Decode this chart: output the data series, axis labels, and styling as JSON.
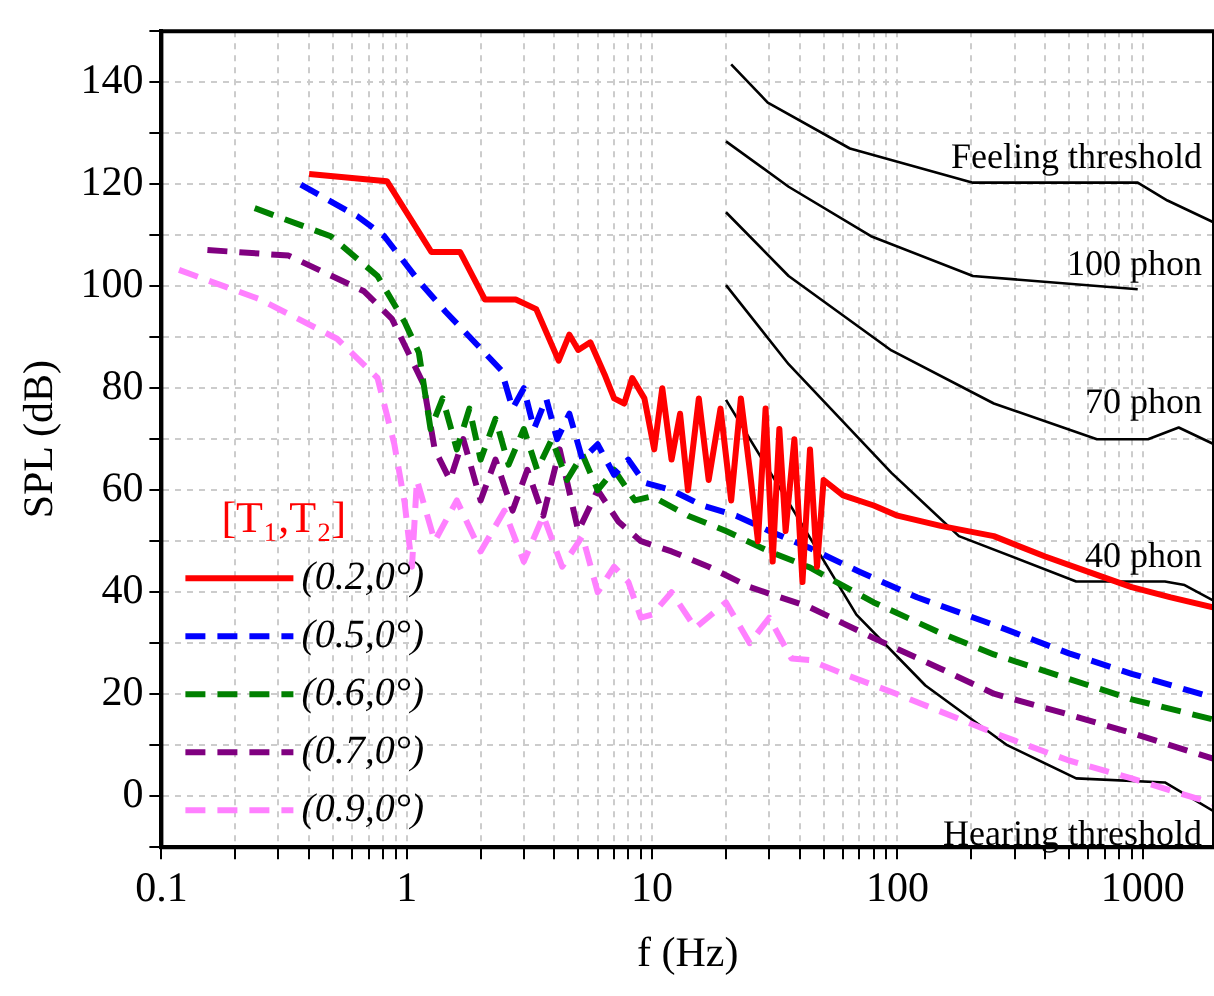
{
  "chart_data": {
    "type": "line",
    "xlabel": "f (Hz)",
    "ylabel": "SPL (dB)",
    "legend_title": "[T₁,T₂]",
    "legend": "bottom left",
    "log": "x",
    "grid": true,
    "marker": "none",
    "xlim": [
      0.1,
      1950
    ],
    "ylim": [
      -10,
      150
    ],
    "xticks": [
      0.1,
      {
        "value": 0.2,
        "label": null
      },
      {
        "value": 0.3,
        "label": null
      },
      {
        "value": 0.4,
        "label": null
      },
      {
        "value": 0.5,
        "label": null
      },
      {
        "value": 0.6,
        "label": null
      },
      {
        "value": 0.7,
        "label": null
      },
      {
        "value": 0.8,
        "label": null
      },
      {
        "value": 0.9,
        "label": null
      },
      1,
      {
        "value": 2,
        "label": null
      },
      {
        "value": 3,
        "label": null
      },
      {
        "value": 4,
        "label": null
      },
      {
        "value": 5,
        "label": null
      },
      {
        "value": 6,
        "label": null
      },
      {
        "value": 7,
        "label": null
      },
      {
        "value": 8,
        "label": null
      },
      {
        "value": 9,
        "label": null
      },
      10,
      {
        "value": 20,
        "label": null
      },
      {
        "value": 30,
        "label": null
      },
      {
        "value": 40,
        "label": null
      },
      {
        "value": 50,
        "label": null
      },
      {
        "value": 60,
        "label": null
      },
      {
        "value": 70,
        "label": null
      },
      {
        "value": 80,
        "label": null
      },
      {
        "value": 90,
        "label": null
      },
      100,
      {
        "value": 200,
        "label": null
      },
      {
        "value": 300,
        "label": null
      },
      {
        "value": 400,
        "label": null
      },
      {
        "value": 500,
        "label": null
      },
      {
        "value": 600,
        "label": null
      },
      {
        "value": 700,
        "label": null
      },
      {
        "value": 800,
        "label": null
      },
      {
        "value": 900,
        "label": null
      },
      1000
    ],
    "yticks": [
      {
        "value": -10,
        "label": null
      },
      0,
      {
        "value": 10,
        "label": null
      },
      20,
      {
        "value": 30,
        "label": null
      },
      40,
      {
        "value": 50,
        "label": null
      },
      60,
      {
        "value": 70,
        "label": null
      },
      80,
      {
        "value": 90,
        "label": null
      },
      100,
      {
        "value": 110,
        "label": null
      },
      120,
      {
        "value": 130,
        "label": null
      },
      140,
      {
        "value": 150,
        "label": null
      }
    ],
    "series": [
      {
        "name": "(0.2,0°)",
        "color": "#ff0000",
        "line_style": "solid",
        "x": [
          0.4,
          0.83,
          1.26,
          1.65,
          2.08,
          2.78,
          3.37,
          4.16,
          4.6,
          5.0,
          5.6,
          6.4,
          7.0,
          7.7,
          8.3,
          9.3,
          10.2,
          11,
          12,
          13,
          14,
          15.5,
          17,
          19,
          21,
          23,
          25,
          27,
          29,
          31,
          33,
          35,
          38,
          41,
          44,
          47,
          50,
          60,
          80,
          100,
          150,
          247,
          400,
          600,
          900,
          1300,
          1950
        ],
        "values": [
          122,
          120.6,
          106.7,
          106.7,
          97.4,
          97.4,
          95.5,
          85.4,
          90.5,
          87.5,
          89,
          82.7,
          78,
          77,
          82,
          78,
          68,
          80,
          66,
          75,
          60,
          78,
          62,
          76,
          58,
          78,
          64,
          50,
          76,
          46,
          72,
          52,
          70,
          42,
          68,
          45,
          62,
          59,
          57,
          55,
          53,
          51,
          47,
          44,
          41,
          39,
          37
        ]
      },
      {
        "name": "(0.5,0°)",
        "color": "#0000ff",
        "line_style": "dashed",
        "x": [
          0.37,
          0.63,
          0.81,
          1.12,
          1.44,
          2.43,
          2.7,
          3.0,
          3.3,
          3.7,
          4.1,
          4.6,
          5.2,
          6,
          7,
          8,
          9.3,
          12,
          16,
          22,
          30,
          43.7,
          70,
          120,
          247,
          500,
          900,
          1950
        ],
        "values": [
          119.9,
          113.7,
          109.8,
          101,
          95,
          83.5,
          76,
          80,
          72,
          78,
          70,
          75,
          66,
          69,
          63,
          66,
          61.5,
          60,
          57,
          55,
          52,
          48.7,
          44,
          39,
          33.6,
          28,
          24,
          19.3
        ]
      },
      {
        "name": "(0.6,0°)",
        "color": "#008000",
        "line_style": "dashed",
        "x": [
          0.24,
          0.49,
          0.76,
          0.98,
          1.12,
          1.25,
          1.4,
          1.6,
          1.8,
          2.0,
          2.3,
          2.6,
          3.0,
          3.4,
          3.9,
          4.5,
          5.2,
          6,
          7,
          8.5,
          10,
          14,
          20,
          30,
          43.7,
          80,
          150,
          247,
          500,
          900,
          1950
        ],
        "values": [
          115.3,
          109.8,
          102,
          93,
          87,
          72,
          78,
          68,
          76,
          66,
          74,
          65,
          72,
          64,
          70,
          62,
          67,
          60,
          64,
          58,
          58.8,
          55,
          52,
          48,
          44.9,
          38,
          32,
          27.8,
          23,
          19,
          15
        ]
      },
      {
        "name": "(0.7,0°)",
        "color": "#800080",
        "line_style": "dashed",
        "x": [
          0.154,
          0.33,
          0.67,
          0.87,
          1.17,
          1.3,
          1.5,
          1.7,
          2,
          2.3,
          2.7,
          3.1,
          3.6,
          4.2,
          5,
          6,
          7.3,
          9,
          12,
          17,
          25,
          43.7,
          80,
          150,
          247,
          500,
          900,
          1950
        ],
        "values": [
          107.1,
          106,
          99,
          93.6,
          80.8,
          68,
          62,
          70,
          58,
          66,
          56,
          64,
          55,
          68,
          52,
          60,
          53.8,
          50,
          48,
          45,
          41,
          37.1,
          31,
          25,
          20.1,
          16,
          12.4,
          7.3
        ]
      },
      {
        "name": "(0.9,0°)",
        "color": "#ff80ff",
        "line_style": "dashed",
        "x": [
          0.118,
          0.25,
          0.52,
          0.76,
          0.89,
          0.98,
          1.05,
          1.1,
          1.3,
          1.6,
          2,
          2.5,
          3,
          3.6,
          4.3,
          5.2,
          6,
          7,
          8,
          9,
          10,
          12,
          15,
          20,
          25,
          30,
          37,
          43.7,
          60,
          100,
          247,
          500,
          900,
          1950
        ],
        "values": [
          103.2,
          97.5,
          89.7,
          82,
          69,
          57.6,
          45,
          62,
          50,
          58,
          48,
          56,
          46,
          55,
          45,
          51,
          40,
          45,
          42,
          35,
          35.6,
          40,
          33,
          38,
          30,
          35,
          27,
          26.7,
          24,
          20,
          12.4,
          7,
          3.5,
          -1.5
        ]
      },
      {
        "name": "Feeling threshold",
        "color": "#000000",
        "line_style": "solid",
        "x": [
          21,
          29.6,
          64,
          203,
          953,
          1260,
          1950
        ],
        "values": [
          143.5,
          136,
          127,
          120.3,
          120.3,
          116.8,
          112.5
        ]
      },
      {
        "name": "100 phon",
        "color": "#000000",
        "line_style": "solid",
        "x": [
          20,
          36,
          78,
          203,
          953
        ],
        "values": [
          128.4,
          119.5,
          109.8,
          102,
          99.4
        ]
      },
      {
        "name": "70 phon",
        "color": "#000000",
        "line_style": "solid",
        "x": [
          20,
          36,
          94.5,
          247,
          650,
          1050,
          1400,
          1950
        ],
        "values": [
          114.5,
          102,
          87.4,
          77,
          70,
          70,
          72.3,
          69
        ]
      },
      {
        "name": "40 phon",
        "color": "#000000",
        "line_style": "solid",
        "x": [
          20,
          36,
          94.5,
          178,
          535,
          1230,
          1480,
          1950
        ],
        "values": [
          100.2,
          84.7,
          63.4,
          51,
          42.1,
          42.1,
          41.4,
          38.3
        ]
      },
      {
        "name": "Hearing threshold",
        "color": "#000000",
        "line_style": "solid",
        "x": [
          20,
          36,
          68,
          130,
          280,
          535,
          1230,
          1950
        ],
        "values": [
          77.7,
          57.6,
          35.6,
          21.7,
          10,
          3.5,
          2.7,
          -3
        ]
      }
    ]
  }
}
